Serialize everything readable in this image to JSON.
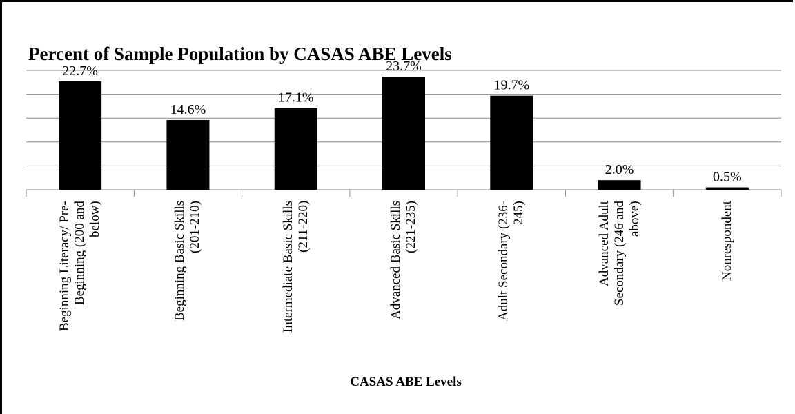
{
  "chart_data": {
    "type": "bar",
    "title": "Percent of Sample Population by CASAS ABE Levels",
    "x_label": "CASAS ABE Levels",
    "categories": [
      "Beginning Literacy/ Pre-Beginning (200 and below)",
      "Beginning Basic Skills (201-210)",
      "Intermediate Basic Skills (211-220)",
      "Advanced Basic Skills (221-235)",
      "Adult Secondary (236-245)",
      "Advanced Adult Secondary (246 and above)",
      "Nonrespondent"
    ],
    "values": [
      22.7,
      14.6,
      17.1,
      23.7,
      19.7,
      2.0,
      0.5
    ],
    "value_labels": [
      "22.7%",
      "14.6%",
      "17.1%",
      "23.7%",
      "19.7%",
      "2.0%",
      "0.5%"
    ],
    "color": "#000000",
    "ylim": [
      0,
      25
    ],
    "yticks": [
      0,
      5,
      10,
      15,
      20,
      25
    ],
    "grid": true
  }
}
